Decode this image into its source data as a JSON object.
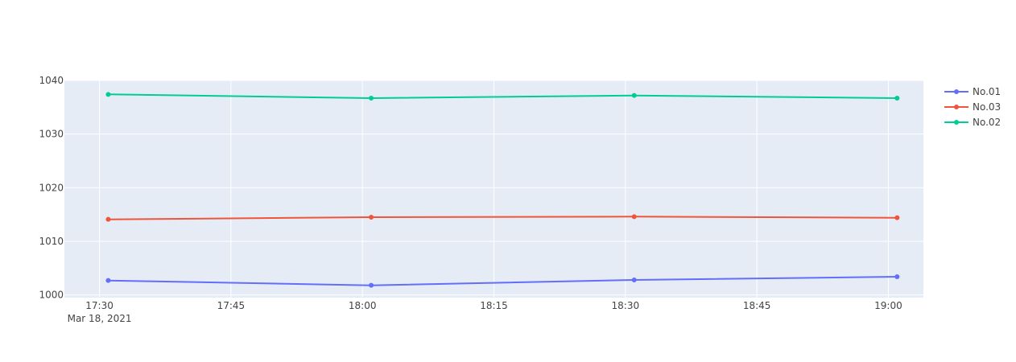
{
  "chart_data": {
    "type": "line",
    "title": "",
    "xlabel": "",
    "ylabel": "",
    "x": [
      "2021-03-18 17:31",
      "2021-03-18 18:01",
      "2021-03-18 18:31",
      "2021-03-18 19:01"
    ],
    "xlim": [
      "2021-03-18 17:26",
      "2021-03-18 19:04"
    ],
    "ylim": [
      999.5,
      1040
    ],
    "x_ticks": [
      {
        "label": "17:30",
        "sublabel": "Mar 18, 2021",
        "value": "2021-03-18 17:30"
      },
      {
        "label": "17:45",
        "value": "2021-03-18 17:45"
      },
      {
        "label": "18:00",
        "value": "2021-03-18 18:00"
      },
      {
        "label": "18:15",
        "value": "2021-03-18 18:15"
      },
      {
        "label": "18:30",
        "value": "2021-03-18 18:30"
      },
      {
        "label": "18:45",
        "value": "2021-03-18 18:45"
      },
      {
        "label": "19:00",
        "value": "2021-03-18 19:00"
      }
    ],
    "y_ticks": [
      1000,
      1010,
      1020,
      1030,
      1040
    ],
    "grid": true,
    "legend_position": "top-right",
    "series": [
      {
        "name": "No.01",
        "color": "#636efa",
        "values": [
          1002.7,
          1001.8,
          1002.8,
          1003.4
        ]
      },
      {
        "name": "No.03",
        "color": "#ef553b",
        "values": [
          1014.1,
          1014.5,
          1014.6,
          1014.4
        ]
      },
      {
        "name": "No.02",
        "color": "#00cc96",
        "values": [
          1037.4,
          1036.7,
          1037.2,
          1036.7
        ]
      }
    ]
  }
}
